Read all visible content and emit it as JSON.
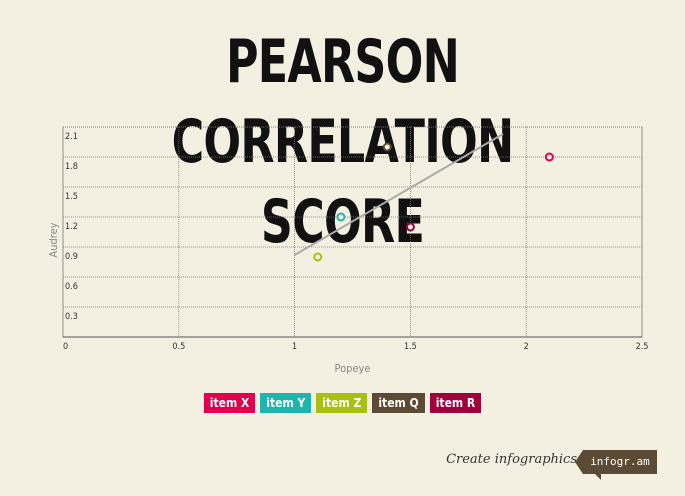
{
  "chart_data": {
    "type": "scatter",
    "title": "PEARSON CORRELATION SCORE",
    "xlabel": "Popeye",
    "ylabel": "Audrey",
    "xlim": [
      0,
      2.5
    ],
    "ylim": [
      0,
      2.1
    ],
    "x_ticks": [
      "0",
      "0.5",
      "1",
      "1.5",
      "2",
      "2.5"
    ],
    "y_ticks": [
      "0.3",
      "0.6",
      "0.9",
      "1.2",
      "1.5",
      "1.8",
      "2.1"
    ],
    "y_tick_values": [
      0.3,
      0.6,
      0.9,
      1.2,
      1.5,
      1.8,
      2.1
    ],
    "x_tick_values": [
      0,
      0.5,
      1,
      1.5,
      2,
      2.5
    ],
    "grid": true,
    "legend_position": "bottom",
    "series": [
      {
        "name": "item X",
        "color": "#e0004d",
        "points": [
          [
            2.1,
            1.8
          ]
        ]
      },
      {
        "name": "item Y",
        "color": "#1fb5ad",
        "points": [
          [
            1.2,
            1.2
          ]
        ]
      },
      {
        "name": "item Z",
        "color": "#a8c010",
        "points": [
          [
            1.1,
            0.8
          ]
        ]
      },
      {
        "name": "item Q",
        "color": "#5b4b34",
        "points": [
          [
            1.4,
            1.9
          ]
        ]
      },
      {
        "name": "item R",
        "color": "#a0003c",
        "points": [
          [
            1.5,
            1.1
          ]
        ]
      }
    ],
    "trendline": {
      "color": "#aaaaaa",
      "points": [
        [
          1.0,
          0.82
        ],
        [
          1.9,
          2.03
        ]
      ]
    }
  },
  "footer": {
    "text": "Create infographics",
    "badge": "infogr.am"
  }
}
